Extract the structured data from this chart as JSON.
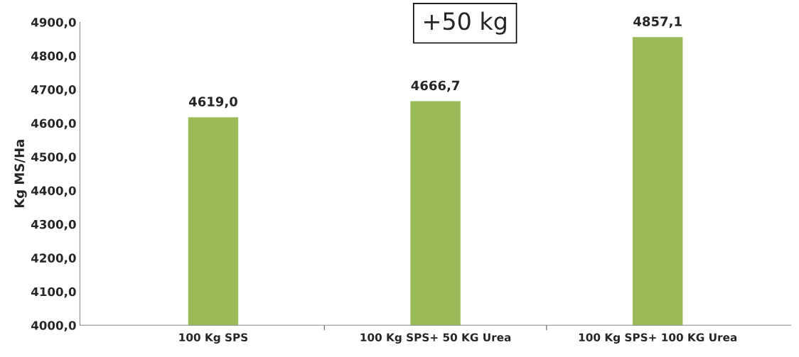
{
  "chart_data": {
    "type": "bar",
    "ylabel": "Kg MS/Ha",
    "categories": [
      "100 Kg SPS",
      "100 Kg SPS+ 50 KG Urea",
      "100 Kg SPS+ 100 KG Urea"
    ],
    "values": [
      4619.0,
      4666.7,
      4857.1
    ],
    "value_labels": [
      "4619,0",
      "4666,7",
      "4857,1"
    ],
    "color": "#9bbb59",
    "ylim": [
      4000,
      4900
    ],
    "yticks": [
      {
        "value": 4000,
        "label": "4000,0"
      },
      {
        "value": 4100,
        "label": "4100,0"
      },
      {
        "value": 4200,
        "label": "4200,0"
      },
      {
        "value": 4300,
        "label": "4300,0"
      },
      {
        "value": 4400,
        "label": "4400,0"
      },
      {
        "value": 4500,
        "label": "4500,0"
      },
      {
        "value": 4600,
        "label": "4600,0"
      },
      {
        "value": 4700,
        "label": "4700,0"
      },
      {
        "value": 4800,
        "label": "4800,0"
      },
      {
        "value": 4900,
        "label": "4900,0"
      }
    ],
    "annotations": [
      "+50 kg"
    ],
    "grid": false,
    "legend": false
  }
}
